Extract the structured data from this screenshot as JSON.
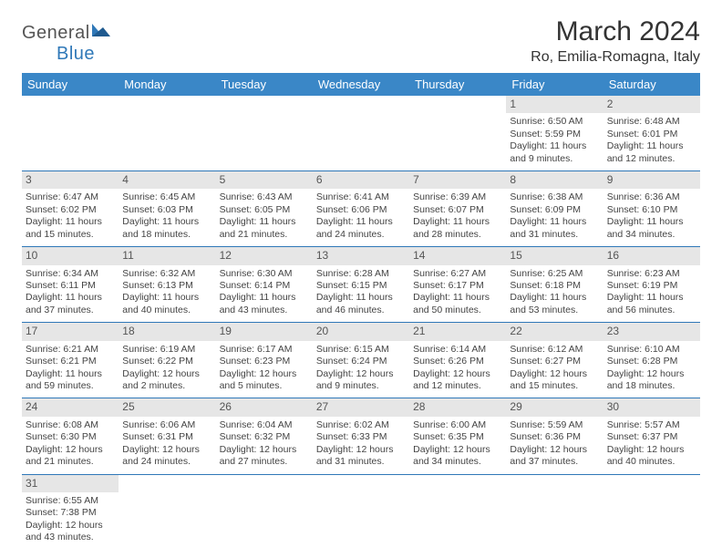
{
  "logo": {
    "text1": "General",
    "text2": "Blue"
  },
  "title": "March 2024",
  "location": "Ro, Emilia-Romagna, Italy",
  "colors": {
    "header_bg": "#3a87c7",
    "daynum_bg": "#e6e6e6",
    "rule": "#2f78b8",
    "logo_blue": "#2f78b8"
  },
  "weekdays": [
    "Sunday",
    "Monday",
    "Tuesday",
    "Wednesday",
    "Thursday",
    "Friday",
    "Saturday"
  ],
  "weeks": [
    [
      {
        "day": "",
        "sunrise": "",
        "sunset": "",
        "daylight": ""
      },
      {
        "day": "",
        "sunrise": "",
        "sunset": "",
        "daylight": ""
      },
      {
        "day": "",
        "sunrise": "",
        "sunset": "",
        "daylight": ""
      },
      {
        "day": "",
        "sunrise": "",
        "sunset": "",
        "daylight": ""
      },
      {
        "day": "",
        "sunrise": "",
        "sunset": "",
        "daylight": ""
      },
      {
        "day": "1",
        "sunrise": "Sunrise: 6:50 AM",
        "sunset": "Sunset: 5:59 PM",
        "daylight": "Daylight: 11 hours and 9 minutes."
      },
      {
        "day": "2",
        "sunrise": "Sunrise: 6:48 AM",
        "sunset": "Sunset: 6:01 PM",
        "daylight": "Daylight: 11 hours and 12 minutes."
      }
    ],
    [
      {
        "day": "3",
        "sunrise": "Sunrise: 6:47 AM",
        "sunset": "Sunset: 6:02 PM",
        "daylight": "Daylight: 11 hours and 15 minutes."
      },
      {
        "day": "4",
        "sunrise": "Sunrise: 6:45 AM",
        "sunset": "Sunset: 6:03 PM",
        "daylight": "Daylight: 11 hours and 18 minutes."
      },
      {
        "day": "5",
        "sunrise": "Sunrise: 6:43 AM",
        "sunset": "Sunset: 6:05 PM",
        "daylight": "Daylight: 11 hours and 21 minutes."
      },
      {
        "day": "6",
        "sunrise": "Sunrise: 6:41 AM",
        "sunset": "Sunset: 6:06 PM",
        "daylight": "Daylight: 11 hours and 24 minutes."
      },
      {
        "day": "7",
        "sunrise": "Sunrise: 6:39 AM",
        "sunset": "Sunset: 6:07 PM",
        "daylight": "Daylight: 11 hours and 28 minutes."
      },
      {
        "day": "8",
        "sunrise": "Sunrise: 6:38 AM",
        "sunset": "Sunset: 6:09 PM",
        "daylight": "Daylight: 11 hours and 31 minutes."
      },
      {
        "day": "9",
        "sunrise": "Sunrise: 6:36 AM",
        "sunset": "Sunset: 6:10 PM",
        "daylight": "Daylight: 11 hours and 34 minutes."
      }
    ],
    [
      {
        "day": "10",
        "sunrise": "Sunrise: 6:34 AM",
        "sunset": "Sunset: 6:11 PM",
        "daylight": "Daylight: 11 hours and 37 minutes."
      },
      {
        "day": "11",
        "sunrise": "Sunrise: 6:32 AM",
        "sunset": "Sunset: 6:13 PM",
        "daylight": "Daylight: 11 hours and 40 minutes."
      },
      {
        "day": "12",
        "sunrise": "Sunrise: 6:30 AM",
        "sunset": "Sunset: 6:14 PM",
        "daylight": "Daylight: 11 hours and 43 minutes."
      },
      {
        "day": "13",
        "sunrise": "Sunrise: 6:28 AM",
        "sunset": "Sunset: 6:15 PM",
        "daylight": "Daylight: 11 hours and 46 minutes."
      },
      {
        "day": "14",
        "sunrise": "Sunrise: 6:27 AM",
        "sunset": "Sunset: 6:17 PM",
        "daylight": "Daylight: 11 hours and 50 minutes."
      },
      {
        "day": "15",
        "sunrise": "Sunrise: 6:25 AM",
        "sunset": "Sunset: 6:18 PM",
        "daylight": "Daylight: 11 hours and 53 minutes."
      },
      {
        "day": "16",
        "sunrise": "Sunrise: 6:23 AM",
        "sunset": "Sunset: 6:19 PM",
        "daylight": "Daylight: 11 hours and 56 minutes."
      }
    ],
    [
      {
        "day": "17",
        "sunrise": "Sunrise: 6:21 AM",
        "sunset": "Sunset: 6:21 PM",
        "daylight": "Daylight: 11 hours and 59 minutes."
      },
      {
        "day": "18",
        "sunrise": "Sunrise: 6:19 AM",
        "sunset": "Sunset: 6:22 PM",
        "daylight": "Daylight: 12 hours and 2 minutes."
      },
      {
        "day": "19",
        "sunrise": "Sunrise: 6:17 AM",
        "sunset": "Sunset: 6:23 PM",
        "daylight": "Daylight: 12 hours and 5 minutes."
      },
      {
        "day": "20",
        "sunrise": "Sunrise: 6:15 AM",
        "sunset": "Sunset: 6:24 PM",
        "daylight": "Daylight: 12 hours and 9 minutes."
      },
      {
        "day": "21",
        "sunrise": "Sunrise: 6:14 AM",
        "sunset": "Sunset: 6:26 PM",
        "daylight": "Daylight: 12 hours and 12 minutes."
      },
      {
        "day": "22",
        "sunrise": "Sunrise: 6:12 AM",
        "sunset": "Sunset: 6:27 PM",
        "daylight": "Daylight: 12 hours and 15 minutes."
      },
      {
        "day": "23",
        "sunrise": "Sunrise: 6:10 AM",
        "sunset": "Sunset: 6:28 PM",
        "daylight": "Daylight: 12 hours and 18 minutes."
      }
    ],
    [
      {
        "day": "24",
        "sunrise": "Sunrise: 6:08 AM",
        "sunset": "Sunset: 6:30 PM",
        "daylight": "Daylight: 12 hours and 21 minutes."
      },
      {
        "day": "25",
        "sunrise": "Sunrise: 6:06 AM",
        "sunset": "Sunset: 6:31 PM",
        "daylight": "Daylight: 12 hours and 24 minutes."
      },
      {
        "day": "26",
        "sunrise": "Sunrise: 6:04 AM",
        "sunset": "Sunset: 6:32 PM",
        "daylight": "Daylight: 12 hours and 27 minutes."
      },
      {
        "day": "27",
        "sunrise": "Sunrise: 6:02 AM",
        "sunset": "Sunset: 6:33 PM",
        "daylight": "Daylight: 12 hours and 31 minutes."
      },
      {
        "day": "28",
        "sunrise": "Sunrise: 6:00 AM",
        "sunset": "Sunset: 6:35 PM",
        "daylight": "Daylight: 12 hours and 34 minutes."
      },
      {
        "day": "29",
        "sunrise": "Sunrise: 5:59 AM",
        "sunset": "Sunset: 6:36 PM",
        "daylight": "Daylight: 12 hours and 37 minutes."
      },
      {
        "day": "30",
        "sunrise": "Sunrise: 5:57 AM",
        "sunset": "Sunset: 6:37 PM",
        "daylight": "Daylight: 12 hours and 40 minutes."
      }
    ],
    [
      {
        "day": "31",
        "sunrise": "Sunrise: 6:55 AM",
        "sunset": "Sunset: 7:38 PM",
        "daylight": "Daylight: 12 hours and 43 minutes."
      },
      {
        "day": "",
        "sunrise": "",
        "sunset": "",
        "daylight": ""
      },
      {
        "day": "",
        "sunrise": "",
        "sunset": "",
        "daylight": ""
      },
      {
        "day": "",
        "sunrise": "",
        "sunset": "",
        "daylight": ""
      },
      {
        "day": "",
        "sunrise": "",
        "sunset": "",
        "daylight": ""
      },
      {
        "day": "",
        "sunrise": "",
        "sunset": "",
        "daylight": ""
      },
      {
        "day": "",
        "sunrise": "",
        "sunset": "",
        "daylight": ""
      }
    ]
  ]
}
